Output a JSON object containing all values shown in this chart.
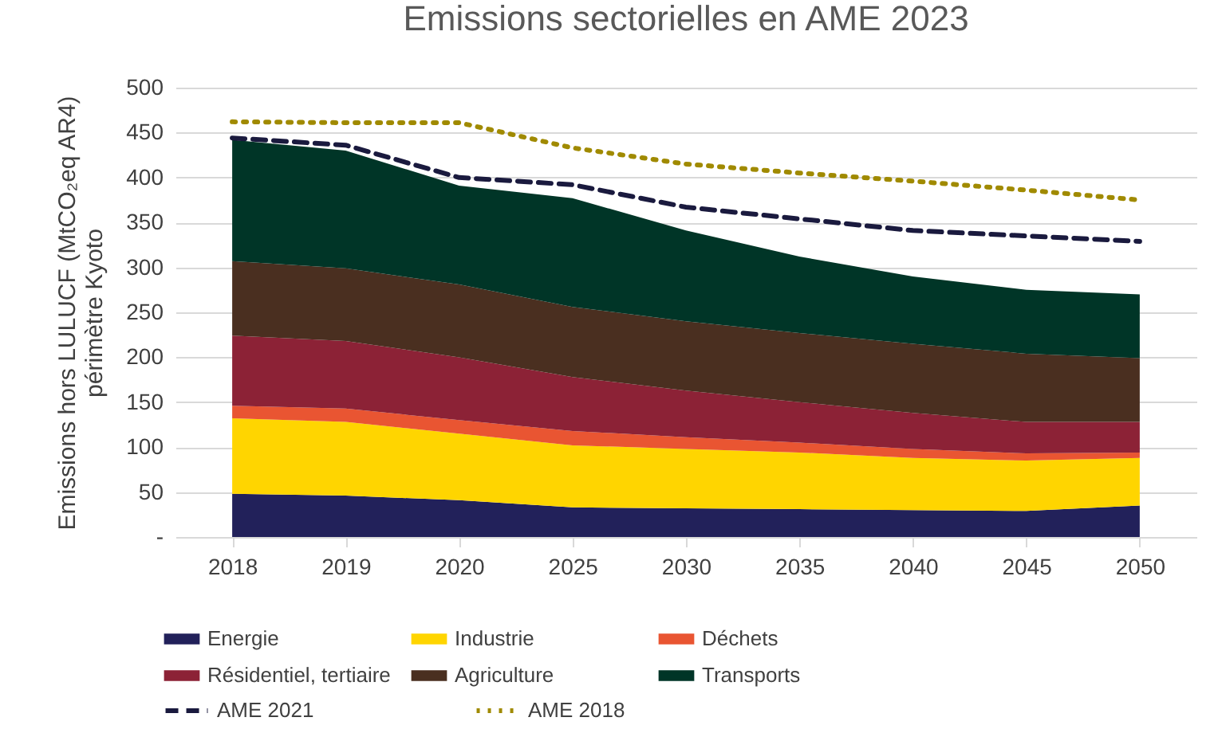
{
  "chart_data": {
    "type": "area",
    "title": "Emissions sectorielles en AME 2023",
    "ylabel": "Emissions hors LULUCF (MtCO₂eq AR4)\npérimètre Kyoto",
    "categories": [
      "2018",
      "2019",
      "2020",
      "2025",
      "2030",
      "2035",
      "2040",
      "2045",
      "2050"
    ],
    "stacked": true,
    "series": [
      {
        "name": "Energie",
        "color": "#22215a",
        "values": [
          48,
          46,
          41,
          33,
          32,
          31,
          30,
          29,
          35
        ]
      },
      {
        "name": "Industrie",
        "color": "#ffd500",
        "values": [
          84,
          82,
          74,
          69,
          66,
          63,
          58,
          56,
          53
        ]
      },
      {
        "name": "Déchets",
        "color": "#e95532",
        "values": [
          14,
          15,
          15,
          16,
          13,
          11,
          10,
          8,
          6
        ]
      },
      {
        "name": "Résidentiel, tertiaire",
        "color": "#8c2236",
        "values": [
          78,
          75,
          70,
          60,
          52,
          45,
          40,
          35,
          34
        ]
      },
      {
        "name": "Agriculture",
        "color": "#4a2f20",
        "values": [
          83,
          81,
          81,
          78,
          77,
          77,
          77,
          76,
          71
        ]
      },
      {
        "name": "Transports",
        "color": "#003527",
        "values": [
          135,
          131,
          110,
          121,
          101,
          85,
          75,
          71,
          71
        ]
      },
      {
        "name": "AME 2021",
        "type": "line",
        "line_style": "dashed",
        "color": "#1a1a3e",
        "values": [
          444,
          436,
          400,
          392,
          367,
          354,
          341,
          335,
          329
        ]
      },
      {
        "name": "AME 2018",
        "type": "line",
        "line_style": "dotted",
        "color": "#a08a00",
        "values": [
          462,
          461,
          461,
          433,
          415,
          405,
          396,
          386,
          375
        ]
      }
    ],
    "ylim": [
      0,
      500
    ],
    "yticks": [
      {
        "value": 0,
        "label": "-"
      },
      50,
      100,
      150,
      200,
      250,
      300,
      350,
      400,
      450,
      500
    ],
    "grid": "y",
    "legend": "bottom"
  }
}
